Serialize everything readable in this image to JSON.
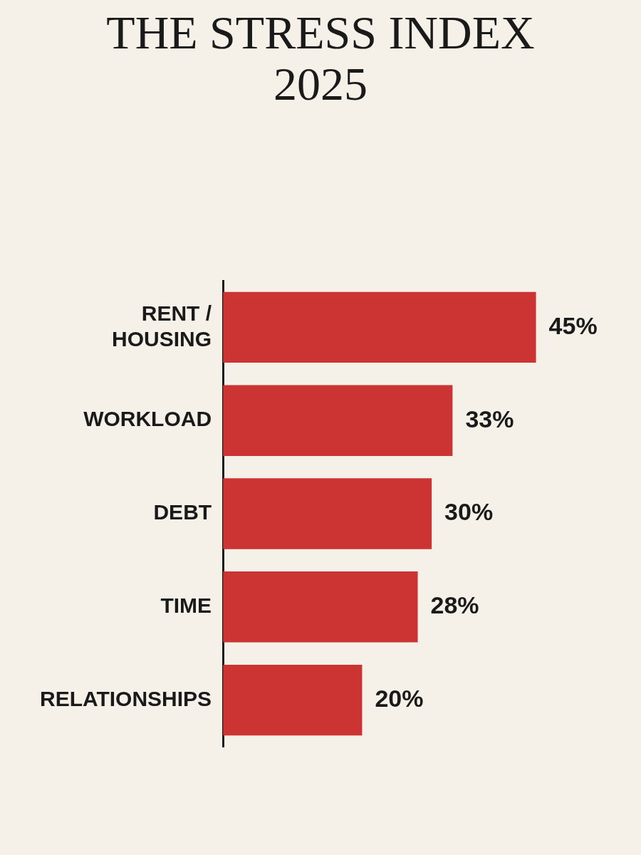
{
  "chart_data": {
    "type": "bar",
    "orientation": "horizontal",
    "title": "THE STRESS INDEX 2025",
    "categories": [
      "RENT / HOUSING",
      "WORKLOAD",
      "DEBT",
      "TIME",
      "RELATIONSHIPS"
    ],
    "values": [
      45,
      33,
      30,
      28,
      20
    ],
    "value_labels": [
      "45%",
      "33%",
      "30%",
      "28%",
      "20%"
    ],
    "color": "#cc3333",
    "tick_labels": "y",
    "grid": false,
    "legend": false
  }
}
